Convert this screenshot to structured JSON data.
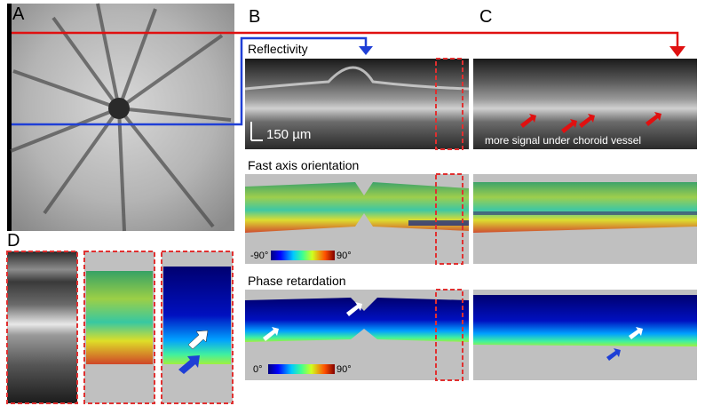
{
  "panels": {
    "a": "A",
    "b": "B",
    "c": "C",
    "d": "D"
  },
  "rows": {
    "reflectivity": "Reflectivity",
    "fast_axis": "Fast axis orientation",
    "phase_retardation": "Phase retardation"
  },
  "annotations": {
    "scale_bar": "150 µm",
    "choroid_note": "more signal under choroid vessel"
  },
  "colorbars": {
    "fast_axis": {
      "min": "-90°",
      "max": "90°"
    },
    "phase": {
      "min": "0°",
      "max": "90°"
    }
  },
  "colors": {
    "blue_scan_line": "#1f3fd6",
    "red_scan_line": "#e01010",
    "highlight_box": "#e03030",
    "white_arrow": "#ffffff",
    "blue_arrow": "#1f3fd6",
    "red_arrow": "#e01010"
  },
  "icons": [
    "arrow-down-icon",
    "arrow-up-right-icon",
    "arrow-right-icon"
  ]
}
